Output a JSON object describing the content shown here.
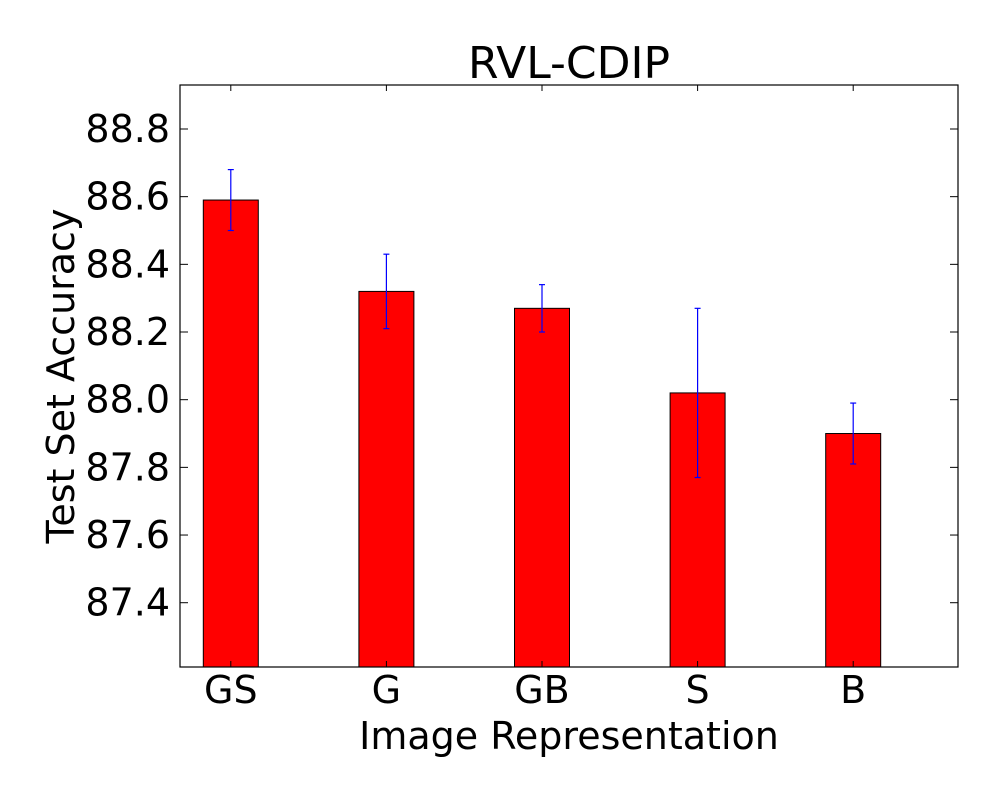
{
  "chart_data": {
    "type": "bar",
    "title": "RVL-CDIP",
    "xlabel": "Image Representation",
    "ylabel": "Test Set Accuracy",
    "categories": [
      "GS",
      "G",
      "GB",
      "S",
      "B"
    ],
    "values": [
      88.59,
      88.32,
      88.27,
      88.02,
      87.9
    ],
    "errors": [
      0.09,
      0.11,
      0.07,
      0.25,
      0.09
    ],
    "ylim": [
      87.21,
      88.93
    ],
    "yticks": [
      87.4,
      87.6,
      87.8,
      88.0,
      88.2,
      88.4,
      88.6,
      88.8
    ],
    "ytick_labels": [
      "87.4",
      "87.6",
      "87.8",
      "88.0",
      "88.2",
      "88.4",
      "88.6",
      "88.8"
    ],
    "bar_color": "#ff0000",
    "error_color": "#0000ff",
    "grid": false,
    "legend": "none"
  }
}
